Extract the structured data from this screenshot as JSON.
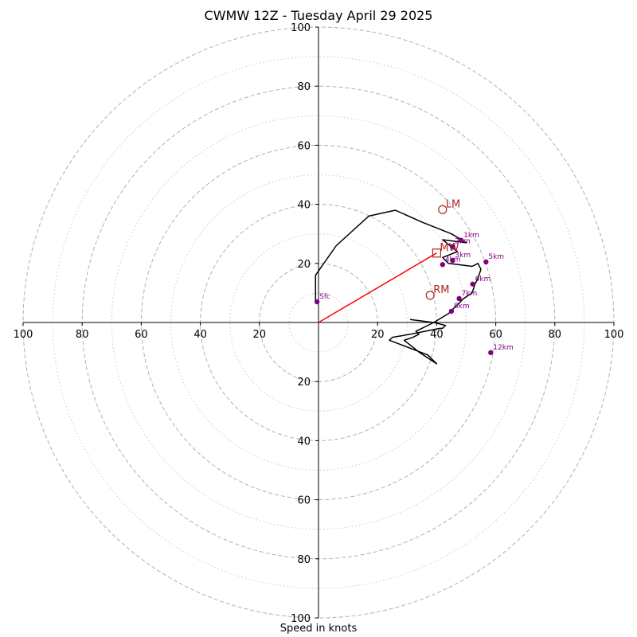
{
  "chart_data": {
    "type": "hodograph",
    "title": "CWMW 12Z - Tuesday April 29 2025",
    "xlabel": "Speed in knots",
    "ylabel": "",
    "xlim": [
      -100,
      100
    ],
    "ylim": [
      -100,
      100
    ],
    "grid": true,
    "rings": {
      "major": [
        20,
        40,
        60,
        80,
        100
      ],
      "minor": [
        10,
        30,
        50,
        70,
        90
      ]
    },
    "ticks": {
      "x_left": [
        "100",
        "80",
        "60",
        "40",
        "20"
      ],
      "x_right": [
        "20",
        "40",
        "60",
        "80",
        "100"
      ],
      "y_top": [
        "100",
        "80",
        "60",
        "40",
        "20"
      ],
      "y_bottom": [
        "20",
        "40",
        "60",
        "80",
        "100"
      ],
      "x_left_values": [
        -100,
        -80,
        -60,
        -40,
        -20
      ],
      "x_right_values": [
        20,
        40,
        60,
        80,
        100
      ],
      "y_top_values": [
        100,
        80,
        60,
        40,
        20
      ],
      "y_bottom_values": [
        -20,
        -40,
        -60,
        -80,
        -100
      ]
    },
    "hodograph": {
      "u": [
        -1,
        -1,
        6,
        17,
        26,
        35,
        45,
        50,
        42,
        47,
        42,
        44,
        52,
        54,
        55,
        54,
        53,
        52,
        49,
        46,
        44,
        39,
        33,
        34,
        32,
        29,
        34,
        40,
        37,
        24,
        25,
        31,
        36,
        41,
        42,
        43,
        39,
        31
      ],
      "v": [
        7,
        16,
        26,
        36,
        38,
        34,
        30,
        27,
        28,
        24,
        22,
        20,
        19,
        20,
        18,
        15,
        13,
        10,
        8,
        5,
        3,
        0,
        -3,
        -4,
        -5,
        -6,
        -10,
        -14,
        -11,
        -6,
        -5,
        -4,
        -3,
        -2,
        -2,
        -1,
        0,
        1
      ]
    },
    "height_markers": [
      {
        "label": "Sfc",
        "u": -0.5,
        "v": 7
      },
      {
        "label": "1km",
        "u": 48.3,
        "v": 27.8
      },
      {
        "label": "2km",
        "u": 45.3,
        "v": 25.7
      },
      {
        "label": "3km",
        "u": 45.4,
        "v": 21
      },
      {
        "label": "4km",
        "u": 42,
        "v": 19.6
      },
      {
        "label": "5km",
        "u": 56.7,
        "v": 20.5
      },
      {
        "label": "6km",
        "u": 52.2,
        "v": 13
      },
      {
        "label": "7km",
        "u": 47.6,
        "v": 8.1
      },
      {
        "label": "8km",
        "u": 45,
        "v": 3.8
      },
      {
        "label": "12km",
        "u": 58.3,
        "v": -10.2
      }
    ],
    "storm_motion": [
      {
        "label": "LM",
        "u": 42,
        "v": 38.2
      },
      {
        "label": "RM",
        "u": 37.8,
        "v": 9.2
      },
      {
        "label": "MW",
        "u": 40,
        "v": 23.5
      }
    ],
    "shear_vector": {
      "from": [
        0,
        0
      ],
      "to": [
        40,
        23.5
      ]
    },
    "colors": {
      "grid": "#b0b0b0",
      "axes": "#000000",
      "trace": "#000000",
      "height": "#800080",
      "motion": "#b22222",
      "shear": "#ff0000"
    }
  }
}
